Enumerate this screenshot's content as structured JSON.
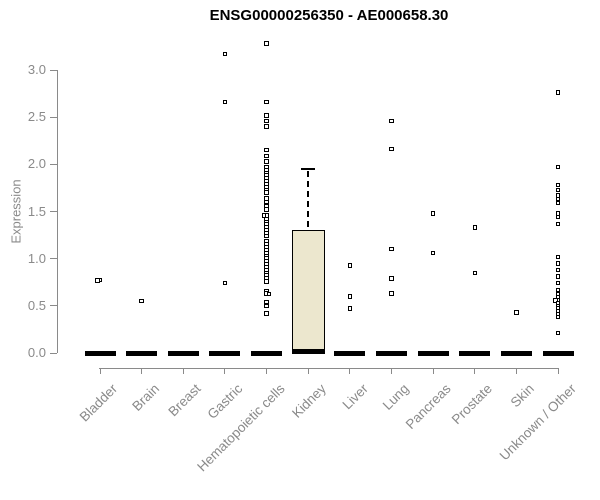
{
  "chart_data": {
    "type": "box",
    "title": "ENSG00000256350 - AE000658.30",
    "xlabel": "",
    "ylabel": "Expression",
    "yticks": [
      0.0,
      0.5,
      1.0,
      1.5,
      2.0,
      2.5,
      3.0
    ],
    "ylim": [
      0.0,
      3.3
    ],
    "grid": false,
    "legend": "none",
    "categories": [
      "Bladder",
      "Brain",
      "Breast",
      "Gastric",
      "Hematopoietic cells",
      "Kidney",
      "Liver",
      "Lung",
      "Pancreas",
      "Prostate",
      "Skin",
      "Unknown / Other"
    ],
    "colors": {
      "box_fill": "#ECE7CE",
      "box_border": "#000000",
      "median": "#000000",
      "point": "#000000",
      "axis": "#8a8a8a",
      "title": "#000000"
    },
    "series": [
      {
        "category": "Bladder",
        "q1": 0,
        "median": 0,
        "q3": 0,
        "points": [
          0.775,
          0.768
        ]
      },
      {
        "category": "Brain",
        "q1": 0,
        "median": 0,
        "q3": 0,
        "points": [
          0.55
        ]
      },
      {
        "category": "Breast",
        "q1": 0,
        "median": 0,
        "q3": 0,
        "points": []
      },
      {
        "category": "Gastric",
        "q1": 0,
        "median": 0,
        "q3": 0,
        "points": [
          3.17,
          2.66,
          0.74
        ]
      },
      {
        "category": "Hematopoietic cells",
        "q1": 0,
        "median": 0,
        "q3": 0,
        "points": [
          3.28,
          2.66,
          2.52,
          2.46,
          2.4,
          2.15,
          2.09,
          2.03,
          1.97,
          1.94,
          1.91,
          1.88,
          1.85,
          1.82,
          1.79,
          1.76,
          1.73,
          1.7,
          1.64,
          1.6,
          1.56,
          1.52,
          1.46,
          1.455,
          1.42,
          1.39,
          1.36,
          1.33,
          1.3,
          1.27,
          1.24,
          1.18,
          1.15,
          1.12,
          1.09,
          1.06,
          1.03,
          1.0,
          0.97,
          0.94,
          0.91,
          0.88,
          0.85,
          0.82,
          0.79,
          0.76,
          0.65,
          0.63,
          0.625,
          0.54,
          0.5,
          0.42
        ]
      },
      {
        "category": "Kidney",
        "q1": 0,
        "median": 0,
        "q3": 1.3,
        "whisker_high": 1.95,
        "points": []
      },
      {
        "category": "Liver",
        "q1": 0,
        "median": 0,
        "q3": 0,
        "points": [
          0.93,
          0.6,
          0.47
        ]
      },
      {
        "category": "Lung",
        "q1": 0,
        "median": 0,
        "q3": 0,
        "points": [
          2.46,
          2.16,
          1.1,
          0.79,
          0.63
        ]
      },
      {
        "category": "Pancreas",
        "q1": 0,
        "median": 0,
        "q3": 0,
        "points": [
          1.48,
          1.06
        ]
      },
      {
        "category": "Prostate",
        "q1": 0,
        "median": 0,
        "q3": 0,
        "points": [
          1.33,
          0.85
        ]
      },
      {
        "category": "Skin",
        "q1": 0,
        "median": 0,
        "q3": 0,
        "points": [
          0.43
        ]
      },
      {
        "category": "Unknown / Other",
        "q1": 0,
        "median": 0,
        "q3": 0,
        "points": [
          2.76,
          1.97,
          1.78,
          1.73,
          1.67,
          1.63,
          1.59,
          1.48,
          1.44,
          1.37,
          1.02,
          0.95,
          0.88,
          0.81,
          0.74,
          0.67,
          0.62,
          0.59,
          0.56,
          0.555,
          0.53,
          0.5,
          0.47,
          0.44,
          0.41,
          0.38,
          0.21
        ]
      }
    ]
  }
}
